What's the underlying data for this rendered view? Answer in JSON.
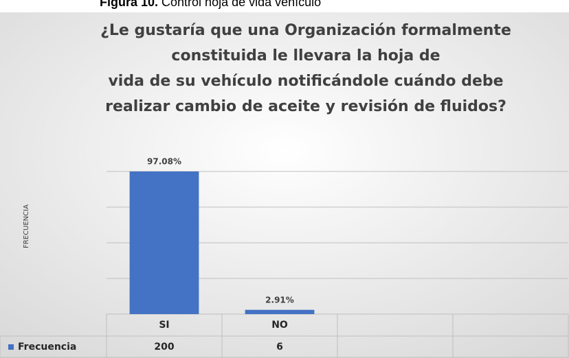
{
  "caption": {
    "label": "Figura 10.",
    "text": "Control hoja de vida vehículo"
  },
  "chart_data": {
    "type": "bar",
    "title": [
      "¿Le gustaría que una Organización formalmente",
      "constituida le llevara la hoja de",
      "vida de su vehículo notificándole cuándo debe",
      "realizar cambio de aceite y revisión de fluidos?"
    ],
    "y_label": "FRECUENCIA",
    "categories": [
      "SI",
      "NO",
      null,
      null
    ],
    "series": [
      {
        "name": "Frecuencia",
        "color": "#4472c4",
        "values": [
          200,
          6,
          null,
          null
        ],
        "value_labels": [
          "97.08%",
          "2.91%",
          null,
          null
        ]
      }
    ],
    "ylim": [
      0,
      200
    ],
    "yticks": [
      0,
      50,
      100,
      150,
      200
    ],
    "grid": true,
    "data_table": true
  }
}
